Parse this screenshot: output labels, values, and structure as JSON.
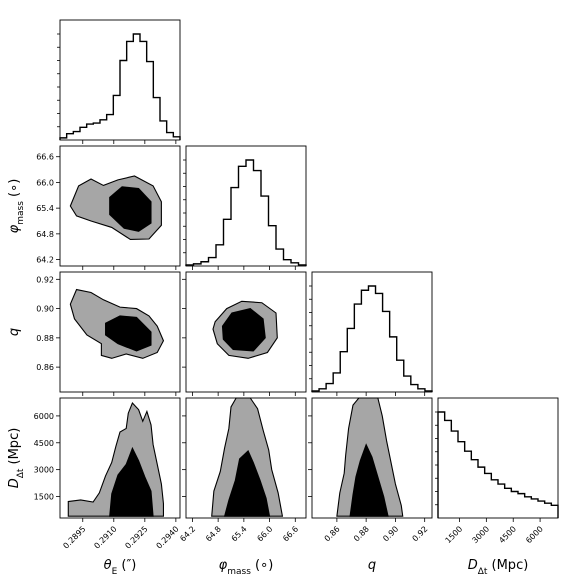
{
  "chart_data": {
    "type": "corner",
    "parameters": [
      {
        "key": "thetaE",
        "label": "θ",
        "sub": "E",
        "unit": " (″)",
        "italic": true,
        "range": [
          0.2884,
          0.2942
        ],
        "ticks": [
          0.2895,
          0.291,
          0.2925,
          0.294
        ],
        "tick_labels": [
          "0.2895",
          "0.2910",
          "0.2925",
          "0.2940"
        ]
      },
      {
        "key": "phi",
        "label": "φ",
        "sub": "mass",
        "unit": " (∘)",
        "italic": true,
        "range": [
          64.05,
          66.85
        ],
        "ticks": [
          64.2,
          64.8,
          65.4,
          66.0,
          66.6
        ],
        "tick_labels": [
          "64.2",
          "64.8",
          "65.4",
          "66.0",
          "66.6"
        ]
      },
      {
        "key": "q",
        "label": "q",
        "sub": "",
        "unit": "",
        "italic": true,
        "range": [
          0.843,
          0.925
        ],
        "ticks": [
          0.86,
          0.88,
          0.9,
          0.92
        ],
        "tick_labels": [
          "0.86",
          "0.88",
          "0.90",
          "0.92"
        ]
      },
      {
        "key": "D",
        "label": "D",
        "sub": "Δt",
        "unit": " (Mpc)",
        "italic": true,
        "range": [
          300,
          7000
        ],
        "ticks": [
          1500,
          3000,
          4500,
          6000
        ],
        "tick_labels": [
          "1500",
          "3000",
          "4500",
          "6000"
        ]
      }
    ],
    "histograms": {
      "thetaE": [
        0.02,
        0.06,
        0.08,
        0.12,
        0.15,
        0.16,
        0.19,
        0.24,
        0.42,
        0.75,
        0.93,
        1.0,
        0.93,
        0.74,
        0.4,
        0.18,
        0.07,
        0.03
      ],
      "phi": [
        0.01,
        0.02,
        0.04,
        0.08,
        0.2,
        0.44,
        0.74,
        0.94,
        1.0,
        0.9,
        0.66,
        0.38,
        0.16,
        0.06,
        0.03,
        0.01
      ],
      "q": [
        0.01,
        0.03,
        0.08,
        0.18,
        0.38,
        0.6,
        0.83,
        0.96,
        1.0,
        0.93,
        0.76,
        0.52,
        0.3,
        0.15,
        0.07,
        0.03,
        0.01
      ],
      "D": [
        1.0,
        0.92,
        0.82,
        0.72,
        0.63,
        0.55,
        0.48,
        0.42,
        0.36,
        0.32,
        0.28,
        0.25,
        0.23,
        0.2,
        0.18,
        0.16,
        0.14,
        0.12
      ]
    },
    "contours": {
      "phi_vs_thetaE": {
        "outer": [
          [
            0.2889,
            65.45
          ],
          [
            0.2893,
            65.92
          ],
          [
            0.2899,
            66.08
          ],
          [
            0.2905,
            65.93
          ],
          [
            0.2912,
            66.06
          ],
          [
            0.292,
            66.15
          ],
          [
            0.2929,
            65.92
          ],
          [
            0.2933,
            65.55
          ],
          [
            0.2933,
            65.0
          ],
          [
            0.2927,
            64.68
          ],
          [
            0.2918,
            64.67
          ],
          [
            0.2909,
            64.95
          ],
          [
            0.2899,
            65.1
          ],
          [
            0.2892,
            65.22
          ]
        ],
        "inner": [
          [
            0.2908,
            65.65
          ],
          [
            0.2914,
            65.9
          ],
          [
            0.2922,
            65.86
          ],
          [
            0.2928,
            65.55
          ],
          [
            0.2928,
            65.05
          ],
          [
            0.2922,
            64.86
          ],
          [
            0.2915,
            64.93
          ],
          [
            0.2908,
            65.25
          ]
        ]
      },
      "q_vs_thetaE": {
        "outer": [
          [
            0.2889,
            0.903
          ],
          [
            0.2892,
            0.913
          ],
          [
            0.2899,
            0.911
          ],
          [
            0.2905,
            0.906
          ],
          [
            0.2913,
            0.901
          ],
          [
            0.2921,
            0.9
          ],
          [
            0.2927,
            0.895
          ],
          [
            0.2931,
            0.888
          ],
          [
            0.2934,
            0.878
          ],
          [
            0.2931,
            0.87
          ],
          [
            0.2924,
            0.866
          ],
          [
            0.2916,
            0.869
          ],
          [
            0.2909,
            0.866
          ],
          [
            0.2904,
            0.868
          ],
          [
            0.2904,
            0.876
          ],
          [
            0.2897,
            0.882
          ],
          [
            0.2891,
            0.893
          ]
        ],
        "inner": [
          [
            0.2906,
            0.89
          ],
          [
            0.2913,
            0.895
          ],
          [
            0.2921,
            0.894
          ],
          [
            0.2928,
            0.884
          ],
          [
            0.2928,
            0.875
          ],
          [
            0.2921,
            0.871
          ],
          [
            0.2912,
            0.876
          ],
          [
            0.2906,
            0.882
          ]
        ]
      },
      "q_vs_phi": {
        "outer": [
          [
            64.73,
            0.891
          ],
          [
            65.0,
            0.9
          ],
          [
            65.35,
            0.905
          ],
          [
            65.82,
            0.904
          ],
          [
            66.15,
            0.897
          ],
          [
            66.18,
            0.88
          ],
          [
            65.95,
            0.87
          ],
          [
            65.5,
            0.866
          ],
          [
            65.05,
            0.868
          ],
          [
            64.78,
            0.876
          ],
          [
            64.68,
            0.886
          ]
        ],
        "inner": [
          [
            64.9,
            0.888
          ],
          [
            65.12,
            0.897
          ],
          [
            65.55,
            0.9
          ],
          [
            65.85,
            0.893
          ],
          [
            65.9,
            0.88
          ],
          [
            65.62,
            0.871
          ],
          [
            65.15,
            0.872
          ],
          [
            64.92,
            0.879
          ]
        ]
      },
      "D_vs_thetaE": {
        "outer": [
          [
            0.2888,
            400
          ],
          [
            0.2888,
            1220
          ],
          [
            0.2894,
            1310
          ],
          [
            0.29,
            1190
          ],
          [
            0.2903,
            1700
          ],
          [
            0.2906,
            2650
          ],
          [
            0.2909,
            3400
          ],
          [
            0.2911,
            4300
          ],
          [
            0.2913,
            5100
          ],
          [
            0.2916,
            5300
          ],
          [
            0.2917,
            6150
          ],
          [
            0.2919,
            6720
          ],
          [
            0.2922,
            6350
          ],
          [
            0.2924,
            5700
          ],
          [
            0.2926,
            6250
          ],
          [
            0.2928,
            5500
          ],
          [
            0.2929,
            4400
          ],
          [
            0.2931,
            3300
          ],
          [
            0.2933,
            2200
          ],
          [
            0.2934,
            1100
          ],
          [
            0.2934,
            400
          ]
        ],
        "inner": [
          [
            0.2908,
            400
          ],
          [
            0.2909,
            1650
          ],
          [
            0.2912,
            2700
          ],
          [
            0.2916,
            3300
          ],
          [
            0.2919,
            4200
          ],
          [
            0.2922,
            3500
          ],
          [
            0.2925,
            2600
          ],
          [
            0.2928,
            1800
          ],
          [
            0.2929,
            400
          ]
        ]
      },
      "D_vs_phi": {
        "outer": [
          [
            64.65,
            400
          ],
          [
            64.7,
            1800
          ],
          [
            64.85,
            2900
          ],
          [
            64.95,
            4200
          ],
          [
            65.05,
            5300
          ],
          [
            65.1,
            6500
          ],
          [
            65.22,
            7000
          ],
          [
            65.55,
            7000
          ],
          [
            65.72,
            6400
          ],
          [
            65.85,
            5200
          ],
          [
            65.98,
            4100
          ],
          [
            66.05,
            3000
          ],
          [
            66.2,
            1700
          ],
          [
            66.3,
            400
          ]
        ],
        "inner": [
          [
            64.95,
            400
          ],
          [
            65.05,
            1300
          ],
          [
            65.2,
            2400
          ],
          [
            65.3,
            3600
          ],
          [
            65.5,
            4050
          ],
          [
            65.62,
            3400
          ],
          [
            65.78,
            2400
          ],
          [
            65.92,
            1400
          ],
          [
            66.0,
            400
          ]
        ]
      },
      "D_vs_q": {
        "outer": [
          [
            0.86,
            400
          ],
          [
            0.862,
            1700
          ],
          [
            0.865,
            2800
          ],
          [
            0.866,
            3800
          ],
          [
            0.868,
            5300
          ],
          [
            0.871,
            6600
          ],
          [
            0.875,
            7000
          ],
          [
            0.888,
            7000
          ],
          [
            0.891,
            6000
          ],
          [
            0.894,
            4600
          ],
          [
            0.897,
            3400
          ],
          [
            0.9,
            2200
          ],
          [
            0.904,
            1000
          ],
          [
            0.905,
            400
          ]
        ],
        "inner": [
          [
            0.869,
            400
          ],
          [
            0.871,
            1600
          ],
          [
            0.873,
            2600
          ],
          [
            0.876,
            3500
          ],
          [
            0.88,
            4400
          ],
          [
            0.884,
            3700
          ],
          [
            0.888,
            2600
          ],
          [
            0.892,
            1500
          ],
          [
            0.895,
            400
          ]
        ]
      }
    },
    "title": "",
    "legend": "none",
    "grid": false
  }
}
